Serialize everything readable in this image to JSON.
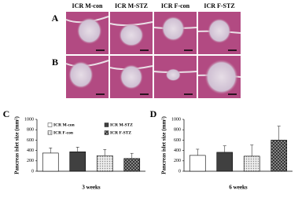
{
  "panels": {
    "row_labels": [
      "A",
      "B"
    ],
    "column_labels": [
      "ICR M-con",
      "ICR M-STZ",
      "ICR F-con",
      "ICR F-STZ"
    ]
  },
  "chart_data": [
    {
      "type": "bar",
      "panel_label": "C",
      "x_label": "3 weeks",
      "y_label": "Pancreas islet size (mm²)",
      "categories": [
        "3 weeks"
      ],
      "ylim": [
        0,
        1000
      ],
      "yticks": [
        0,
        200,
        400,
        600,
        800,
        1000
      ],
      "legend": "top",
      "series": [
        {
          "name": "ICR M-con",
          "color": "#ffffff",
          "pattern": "none",
          "values": [
            350
          ],
          "errors": [
            100
          ]
        },
        {
          "name": "ICR M-STZ",
          "color": "#404040",
          "pattern": "none",
          "values": [
            375
          ],
          "errors": [
            90
          ]
        },
        {
          "name": "ICR F-con",
          "color": "#d8d8d8",
          "pattern": "dots",
          "values": [
            300
          ],
          "errors": [
            120
          ]
        },
        {
          "name": "ICR F-STZ",
          "color": "#6e6e6e",
          "pattern": "crosshatch",
          "values": [
            245
          ],
          "errors": [
            100
          ]
        }
      ]
    },
    {
      "type": "bar",
      "panel_label": "D",
      "x_label": "6 weeks",
      "y_label": "Pancreas islet size (mm²)",
      "categories": [
        "6 weeks"
      ],
      "ylim": [
        0,
        1000
      ],
      "yticks": [
        0,
        200,
        400,
        600,
        800,
        1000
      ],
      "series": [
        {
          "color": "#ffffff",
          "pattern": "none",
          "values": [
            305
          ],
          "errors": [
            120
          ]
        },
        {
          "color": "#404040",
          "pattern": "none",
          "values": [
            365
          ],
          "errors": [
            125
          ]
        },
        {
          "color": "#d8d8d8",
          "pattern": "dots",
          "values": [
            290
          ],
          "errors": [
            215
          ]
        },
        {
          "color": "#6e6e6e",
          "pattern": "crosshatch",
          "values": [
            600
          ],
          "errors": [
            270
          ]
        }
      ]
    }
  ]
}
